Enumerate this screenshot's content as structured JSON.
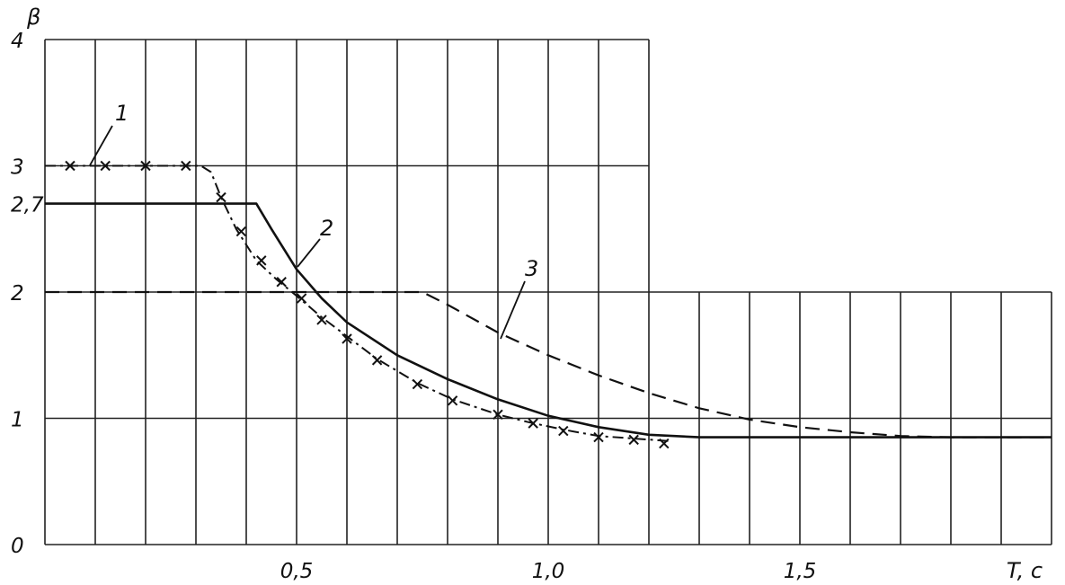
{
  "chart_data": {
    "type": "line",
    "xlabel": "T, c",
    "ylabel": "β",
    "xlim": [
      0,
      2.0
    ],
    "ylim": [
      0,
      4
    ],
    "x_ticks": [
      {
        "value": 0.5,
        "label": "0,5"
      },
      {
        "value": 1.0,
        "label": "1,0"
      },
      {
        "value": 1.5,
        "label": "1,5"
      }
    ],
    "y_ticks": [
      {
        "value": 0,
        "label": "0"
      },
      {
        "value": 1,
        "label": "1"
      },
      {
        "value": 2,
        "label": "2"
      },
      {
        "value": 2.7,
        "label": "2,7"
      },
      {
        "value": 3,
        "label": "3"
      },
      {
        "value": 4,
        "label": "4"
      }
    ],
    "grid": true,
    "series": [
      {
        "name": "1",
        "style": "dash-dot-x",
        "points": [
          [
            0.0,
            3.0
          ],
          [
            0.1,
            3.0
          ],
          [
            0.2,
            3.0
          ],
          [
            0.31,
            3.0
          ],
          [
            0.33,
            2.95
          ],
          [
            0.35,
            2.75
          ],
          [
            0.38,
            2.5
          ],
          [
            0.42,
            2.25
          ],
          [
            0.46,
            2.1
          ],
          [
            0.5,
            1.97
          ],
          [
            0.55,
            1.8
          ],
          [
            0.6,
            1.65
          ],
          [
            0.66,
            1.47
          ],
          [
            0.74,
            1.28
          ],
          [
            0.81,
            1.15
          ],
          [
            0.9,
            1.03
          ],
          [
            0.96,
            0.97
          ],
          [
            1.03,
            0.91
          ],
          [
            1.1,
            0.86
          ],
          [
            1.17,
            0.84
          ],
          [
            1.24,
            0.82
          ]
        ]
      },
      {
        "name": "2",
        "style": "solid",
        "points": [
          [
            0.0,
            2.7
          ],
          [
            0.42,
            2.7
          ],
          [
            0.45,
            2.5
          ],
          [
            0.5,
            2.18
          ],
          [
            0.55,
            1.95
          ],
          [
            0.6,
            1.76
          ],
          [
            0.7,
            1.5
          ],
          [
            0.8,
            1.31
          ],
          [
            0.9,
            1.15
          ],
          [
            1.0,
            1.02
          ],
          [
            1.1,
            0.93
          ],
          [
            1.2,
            0.87
          ],
          [
            1.3,
            0.85
          ],
          [
            1.4,
            0.85
          ],
          [
            1.6,
            0.85
          ],
          [
            1.8,
            0.85
          ],
          [
            2.0,
            0.85
          ]
        ]
      },
      {
        "name": "3",
        "style": "dashed",
        "points": [
          [
            0.0,
            2.0
          ],
          [
            0.75,
            2.0
          ],
          [
            0.8,
            1.9
          ],
          [
            0.9,
            1.68
          ],
          [
            1.0,
            1.5
          ],
          [
            1.1,
            1.34
          ],
          [
            1.2,
            1.2
          ],
          [
            1.3,
            1.08
          ],
          [
            1.4,
            0.99
          ],
          [
            1.5,
            0.93
          ],
          [
            1.6,
            0.89
          ],
          [
            1.7,
            0.86
          ],
          [
            1.8,
            0.85
          ],
          [
            2.0,
            0.85
          ]
        ]
      }
    ],
    "markers": [
      [
        0.05,
        3.0
      ],
      [
        0.12,
        3.0
      ],
      [
        0.2,
        3.0
      ],
      [
        0.28,
        3.0
      ],
      [
        0.35,
        2.75
      ],
      [
        0.39,
        2.48
      ],
      [
        0.43,
        2.25
      ],
      [
        0.47,
        2.08
      ],
      [
        0.51,
        1.95
      ],
      [
        0.55,
        1.78
      ],
      [
        0.6,
        1.63
      ],
      [
        0.66,
        1.46
      ],
      [
        0.74,
        1.27
      ],
      [
        0.81,
        1.14
      ],
      [
        0.9,
        1.03
      ],
      [
        0.97,
        0.96
      ],
      [
        1.03,
        0.9
      ],
      [
        1.1,
        0.85
      ],
      [
        1.17,
        0.83
      ],
      [
        1.23,
        0.8
      ]
    ],
    "annotations": [
      {
        "text": "1",
        "series": "1"
      },
      {
        "text": "2",
        "series": "2"
      },
      {
        "text": "3",
        "series": "3"
      }
    ]
  }
}
